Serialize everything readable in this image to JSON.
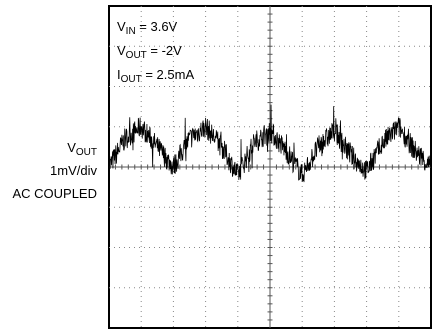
{
  "chart_data": {
    "type": "line",
    "title": "",
    "conditions": {
      "vin": {
        "symbol": "V",
        "sub": "IN",
        "value": " = 3.6V"
      },
      "vout": {
        "symbol": "V",
        "sub": "OUT",
        "value": " = -2V"
      },
      "iout": {
        "symbol": "I",
        "sub": "OUT",
        "value": " = 2.5mA"
      }
    },
    "ylabel": {
      "symbol": "V",
      "sub": "OUT",
      "line2": "1mV/div",
      "line3": "AC COUPLED"
    },
    "xlabel": "",
    "grid": true,
    "divisions": {
      "x": 10,
      "y": 8
    },
    "ylim": [
      -4,
      4
    ],
    "xlim": [
      0,
      10
    ],
    "series": [
      {
        "unit": "mV",
        "x": [
          0,
          0.5,
          1.0,
          1.5,
          2.0,
          2.5,
          3.0,
          3.5,
          4.0,
          4.5,
          5.0,
          5.5,
          6.0,
          6.5,
          7.0,
          7.5,
          8.0,
          8.5,
          9.0,
          9.5,
          10.0
        ],
        "values": [
          0,
          0.7,
          1.0,
          0.5,
          0,
          0.7,
          1.0,
          0.5,
          -0.2,
          0.6,
          0.9,
          0.4,
          -0.2,
          0.5,
          0.9,
          0.3,
          -0.1,
          0.6,
          1.0,
          0.4,
          0
        ]
      }
    ]
  }
}
